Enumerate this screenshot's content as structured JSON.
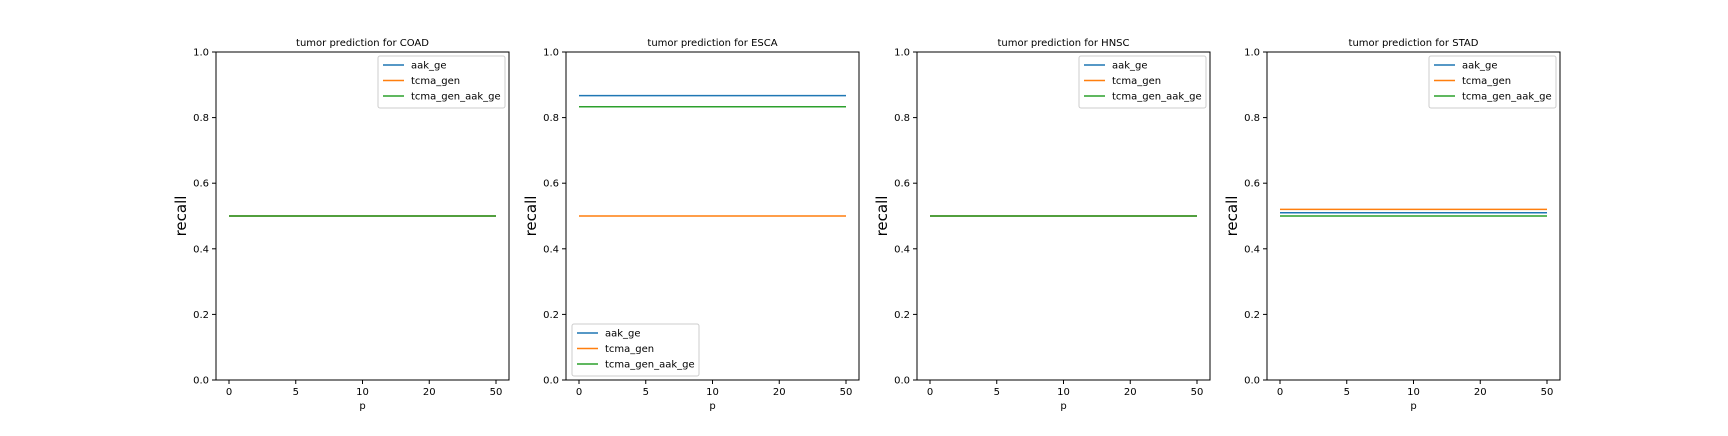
{
  "colors": {
    "aak_ge": "#1f77b4",
    "tcma_gen": "#ff7f0e",
    "tcma_gen_aak_ge": "#2ca02c"
  },
  "chart_data": [
    {
      "type": "line",
      "title": "tumor prediction for COAD",
      "xlabel": "p",
      "ylabel": "recall",
      "xticks": [
        "0",
        "5",
        "10",
        "20",
        "50"
      ],
      "yticks": [
        "0.0",
        "0.2",
        "0.4",
        "0.6",
        "0.8",
        "1.0"
      ],
      "ylim": [
        0,
        1
      ],
      "grid": false,
      "legend_position": "upper right",
      "x": [
        "0",
        "5",
        "10",
        "20",
        "50"
      ],
      "series": [
        {
          "name": "aak_ge",
          "color": "#1f77b4",
          "values": [
            0.5,
            0.5,
            0.5,
            0.5,
            0.5
          ]
        },
        {
          "name": "tcma_gen",
          "color": "#ff7f0e",
          "values": [
            0.5,
            0.5,
            0.5,
            0.5,
            0.5
          ]
        },
        {
          "name": "tcma_gen_aak_ge",
          "color": "#2ca02c",
          "values": [
            0.5,
            0.5,
            0.5,
            0.5,
            0.5
          ]
        }
      ]
    },
    {
      "type": "line",
      "title": "tumor prediction for ESCA",
      "xlabel": "p",
      "ylabel": "recall",
      "xticks": [
        "0",
        "5",
        "10",
        "20",
        "50"
      ],
      "yticks": [
        "0.0",
        "0.2",
        "0.4",
        "0.6",
        "0.8",
        "1.0"
      ],
      "ylim": [
        0,
        1
      ],
      "grid": false,
      "legend_position": "lower left",
      "x": [
        "0",
        "5",
        "10",
        "20",
        "50"
      ],
      "series": [
        {
          "name": "aak_ge",
          "color": "#1f77b4",
          "values": [
            0.867,
            0.867,
            0.867,
            0.867,
            0.867
          ]
        },
        {
          "name": "tcma_gen",
          "color": "#ff7f0e",
          "values": [
            0.5,
            0.5,
            0.5,
            0.5,
            0.5
          ]
        },
        {
          "name": "tcma_gen_aak_ge",
          "color": "#2ca02c",
          "values": [
            0.833,
            0.833,
            0.833,
            0.833,
            0.833
          ]
        }
      ]
    },
    {
      "type": "line",
      "title": "tumor prediction for HNSC",
      "xlabel": "p",
      "ylabel": "recall",
      "xticks": [
        "0",
        "5",
        "10",
        "20",
        "50"
      ],
      "yticks": [
        "0.0",
        "0.2",
        "0.4",
        "0.6",
        "0.8",
        "1.0"
      ],
      "ylim": [
        0,
        1
      ],
      "grid": false,
      "legend_position": "upper right",
      "x": [
        "0",
        "5",
        "10",
        "20",
        "50"
      ],
      "series": [
        {
          "name": "aak_ge",
          "color": "#1f77b4",
          "values": [
            0.5,
            0.5,
            0.5,
            0.5,
            0.5
          ]
        },
        {
          "name": "tcma_gen",
          "color": "#ff7f0e",
          "values": [
            0.5,
            0.5,
            0.5,
            0.5,
            0.5
          ]
        },
        {
          "name": "tcma_gen_aak_ge",
          "color": "#2ca02c",
          "values": [
            0.5,
            0.5,
            0.5,
            0.5,
            0.5
          ]
        }
      ]
    },
    {
      "type": "line",
      "title": "tumor prediction for STAD",
      "xlabel": "p",
      "ylabel": "recall",
      "xticks": [
        "0",
        "5",
        "10",
        "20",
        "50"
      ],
      "yticks": [
        "0.0",
        "0.2",
        "0.4",
        "0.6",
        "0.8",
        "1.0"
      ],
      "ylim": [
        0,
        1
      ],
      "grid": false,
      "legend_position": "upper right",
      "x": [
        "0",
        "5",
        "10",
        "20",
        "50"
      ],
      "series": [
        {
          "name": "aak_ge",
          "color": "#1f77b4",
          "values": [
            0.51,
            0.51,
            0.51,
            0.51,
            0.51
          ]
        },
        {
          "name": "tcma_gen",
          "color": "#ff7f0e",
          "values": [
            0.52,
            0.52,
            0.52,
            0.52,
            0.52
          ]
        },
        {
          "name": "tcma_gen_aak_ge",
          "color": "#2ca02c",
          "values": [
            0.5,
            0.5,
            0.5,
            0.5,
            0.5
          ]
        }
      ]
    }
  ]
}
